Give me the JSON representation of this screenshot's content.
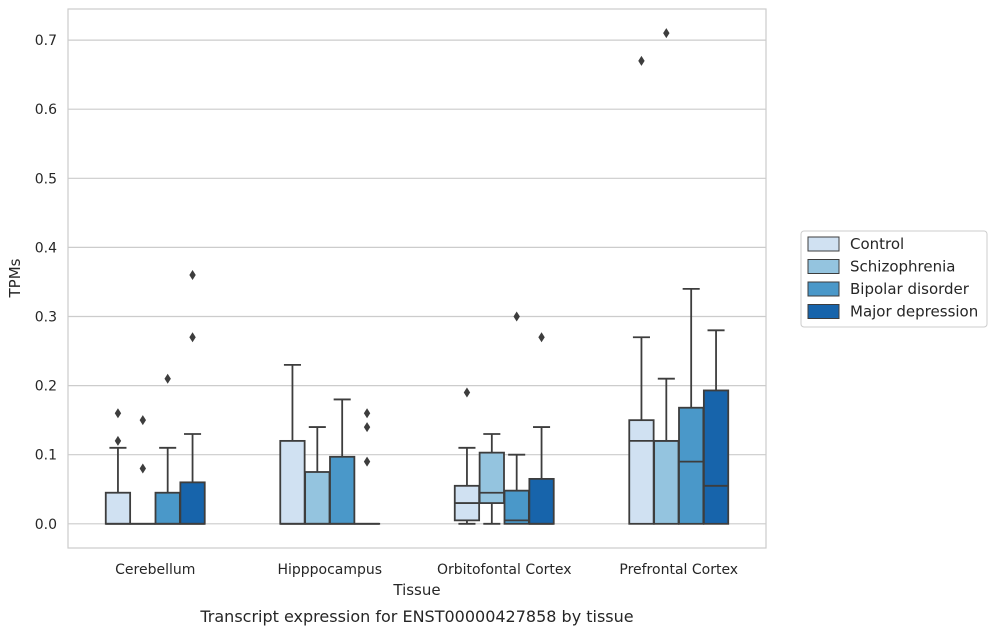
{
  "chart_data": {
    "type": "boxplot",
    "caption": "Transcript expression for ENST00000427858 by tissue",
    "xlabel": "Tissue",
    "ylabel": "TPMs",
    "ylim": [
      -0.035,
      0.745
    ],
    "yticks": [
      0.0,
      0.1,
      0.2,
      0.3,
      0.4,
      0.5,
      0.6,
      0.7
    ],
    "ytick_labels": [
      "0.0",
      "0.1",
      "0.2",
      "0.3",
      "0.4",
      "0.5",
      "0.6",
      "0.7"
    ],
    "grid": true,
    "legend_position": "right",
    "categories": [
      "Cerebellum",
      "Hipppocampus",
      "Orbitofontal Cortex",
      "Prefrontal Cortex"
    ],
    "series": [
      {
        "name": "Control",
        "color": "#d0e1f2",
        "boxes": [
          {
            "q1": 0.0,
            "median": 0.0,
            "q3": 0.045,
            "whislo": 0.0,
            "whishi": 0.11,
            "fliers": [
              0.12,
              0.16
            ]
          },
          {
            "q1": 0.0,
            "median": 0.0,
            "q3": 0.12,
            "whislo": 0.0,
            "whishi": 0.23,
            "fliers": []
          },
          {
            "q1": 0.005,
            "median": 0.03,
            "q3": 0.055,
            "whislo": 0.0,
            "whishi": 0.11,
            "fliers": [
              0.19
            ]
          },
          {
            "q1": 0.0,
            "median": 0.12,
            "q3": 0.15,
            "whislo": 0.0,
            "whishi": 0.27,
            "fliers": [
              0.67
            ]
          }
        ]
      },
      {
        "name": "Schizophrenia",
        "color": "#94c4df",
        "boxes": [
          {
            "q1": 0.0,
            "median": 0.0,
            "q3": 0.0,
            "whislo": 0.0,
            "whishi": 0.0,
            "fliers": [
              0.08,
              0.15
            ]
          },
          {
            "q1": 0.0,
            "median": 0.0,
            "q3": 0.075,
            "whislo": 0.0,
            "whishi": 0.14,
            "fliers": []
          },
          {
            "q1": 0.03,
            "median": 0.045,
            "q3": 0.103,
            "whislo": 0.0,
            "whishi": 0.13,
            "fliers": []
          },
          {
            "q1": 0.0,
            "median": 0.12,
            "q3": 0.12,
            "whislo": 0.0,
            "whishi": 0.21,
            "fliers": [
              0.71
            ]
          }
        ]
      },
      {
        "name": "Bipolar disorder",
        "color": "#4a98c9",
        "boxes": [
          {
            "q1": 0.0,
            "median": 0.0,
            "q3": 0.045,
            "whislo": 0.0,
            "whishi": 0.11,
            "fliers": [
              0.21
            ]
          },
          {
            "q1": 0.0,
            "median": 0.0,
            "q3": 0.097,
            "whislo": 0.0,
            "whishi": 0.18,
            "fliers": []
          },
          {
            "q1": 0.0,
            "median": 0.005,
            "q3": 0.048,
            "whislo": 0.0,
            "whishi": 0.1,
            "fliers": [
              0.3
            ]
          },
          {
            "q1": 0.0,
            "median": 0.09,
            "q3": 0.168,
            "whislo": 0.0,
            "whishi": 0.34,
            "fliers": []
          }
        ]
      },
      {
        "name": "Major depression",
        "color": "#1764ab",
        "boxes": [
          {
            "q1": 0.0,
            "median": 0.0,
            "q3": 0.06,
            "whislo": 0.0,
            "whishi": 0.13,
            "fliers": [
              0.27,
              0.36
            ]
          },
          {
            "q1": 0.0,
            "median": 0.0,
            "q3": 0.0,
            "whislo": 0.0,
            "whishi": 0.0,
            "fliers": [
              0.09,
              0.14,
              0.16
            ]
          },
          {
            "q1": 0.0,
            "median": 0.0,
            "q3": 0.065,
            "whislo": 0.0,
            "whishi": 0.14,
            "fliers": [
              0.27
            ]
          },
          {
            "q1": 0.0,
            "median": 0.055,
            "q3": 0.193,
            "whislo": 0.0,
            "whishi": 0.28,
            "fliers": []
          }
        ]
      }
    ]
  }
}
